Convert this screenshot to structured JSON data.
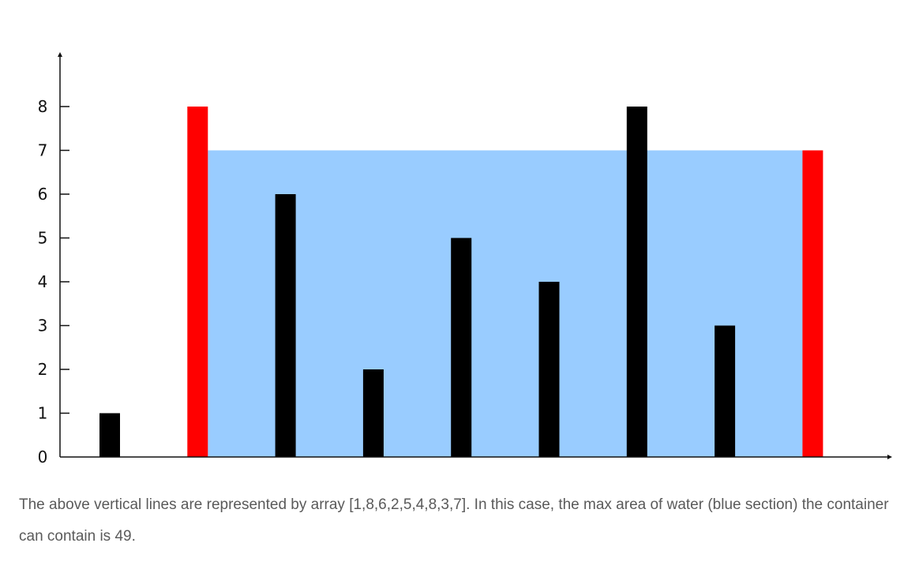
{
  "chart_data": {
    "type": "bar",
    "title": "",
    "xlabel": "",
    "ylabel": "",
    "values": [
      1,
      8,
      6,
      2,
      5,
      4,
      8,
      3,
      7
    ],
    "highlight_indices": [
      1,
      8
    ],
    "water_level": 7,
    "water_range": [
      1,
      8
    ],
    "ylim": [
      0,
      8
    ],
    "yticks": [
      0,
      1,
      2,
      3,
      4,
      5,
      6,
      7,
      8
    ],
    "grid": false,
    "colors": {
      "bar": "#000000",
      "highlight": "#ff0000",
      "water": "#99ccff",
      "axis": "#111111"
    }
  },
  "caption": {
    "text": "The above vertical lines are represented by array [1,8,6,2,5,4,8,3,7]. In this case, the max area of water (blue section) the container can contain is 49."
  }
}
